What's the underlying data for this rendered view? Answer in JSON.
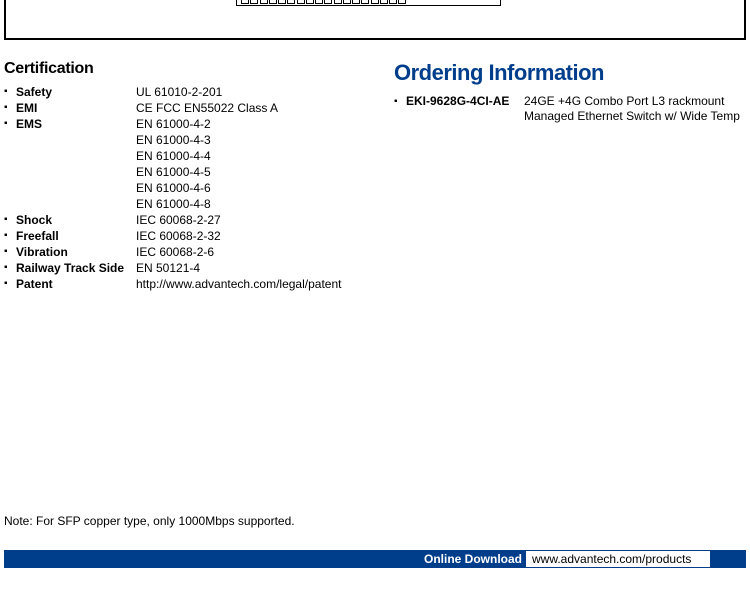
{
  "certification": {
    "heading": "Certification",
    "items": [
      {
        "label": "Safety",
        "values": [
          "UL 61010-2-201"
        ]
      },
      {
        "label": "EMI",
        "values": [
          "CE FCC EN55022 Class A"
        ]
      },
      {
        "label": "EMS",
        "values": [
          "EN 61000-4-2",
          "EN 61000-4-3",
          "EN 61000-4-4",
          "EN 61000-4-5",
          "EN 61000-4-6",
          "EN 61000-4-8"
        ]
      },
      {
        "label": "Shock",
        "values": [
          "IEC 60068-2-27"
        ]
      },
      {
        "label": "Freefall",
        "values": [
          "IEC 60068-2-32"
        ]
      },
      {
        "label": "Vibration",
        "values": [
          "IEC 60068-2-6"
        ]
      },
      {
        "label": "Railway Track Side",
        "values": [
          "EN 50121-4"
        ]
      },
      {
        "label": "Patent",
        "values": [
          "http://www.advantech.com/legal/patent"
        ]
      }
    ]
  },
  "ordering": {
    "heading": "Ordering Information",
    "items": [
      {
        "label": "EKI-9628G-4CI-AE",
        "value": "24GE +4G Combo Port L3 rackmount Managed Ethernet Switch w/ Wide Temp"
      }
    ]
  },
  "note": "Note: For SFP copper type, only 1000Mbps supported.",
  "footer": {
    "label": "Online Download",
    "url": "www.advantech.com/products"
  },
  "colors": {
    "brand_blue": "#003e8c",
    "text": "#000000",
    "background": "#ffffff"
  },
  "typography": {
    "heading_cert_fontsize": 16,
    "heading_order_fontsize": 22,
    "body_fontsize": 12,
    "font_family": "Arial"
  }
}
